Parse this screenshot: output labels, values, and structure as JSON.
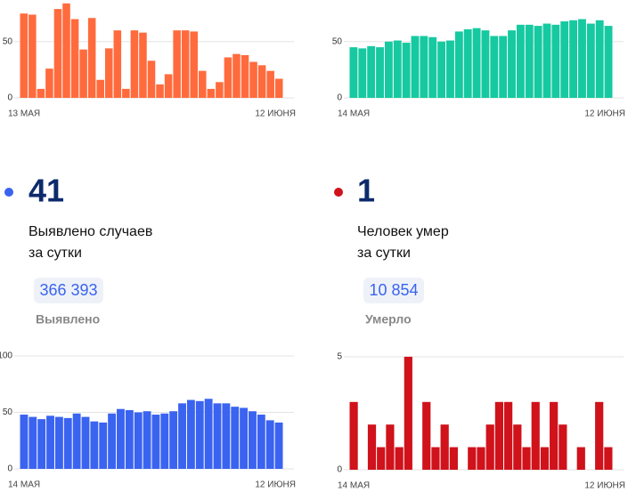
{
  "chart_data": [
    {
      "type": "bar",
      "color": "#ff6b3d",
      "x_labels": [
        "13 МАЯ",
        "12 ИЮНЯ"
      ],
      "ylim": [
        0,
        87
      ],
      "yticks": [
        0,
        50
      ],
      "grid": true,
      "values": [
        75,
        74,
        8,
        26,
        79,
        84,
        70,
        43,
        71,
        16,
        44,
        60,
        8,
        60,
        58,
        33,
        12,
        21,
        60,
        60,
        59,
        24,
        8,
        14,
        36,
        39,
        38,
        32,
        29,
        24,
        17
      ]
    },
    {
      "type": "bar",
      "color": "#16c9a0",
      "x_labels": [
        "14 МАЯ",
        "12 ИЮНЯ"
      ],
      "ylim": [
        0,
        87
      ],
      "yticks": [
        0,
        50
      ],
      "grid": true,
      "values": [
        45,
        44,
        46,
        45,
        50,
        51,
        49,
        55,
        55,
        54,
        50,
        51,
        59,
        61,
        62,
        60,
        55,
        55,
        60,
        65,
        65,
        64,
        66,
        65,
        68,
        69,
        70,
        66,
        69,
        64
      ]
    },
    {
      "type": "bar",
      "color": "#3a63f0",
      "x_labels": [
        "14 МАЯ",
        "12 ИЮНЯ"
      ],
      "ylim": [
        0,
        100
      ],
      "yticks": [
        0,
        50,
        100
      ],
      "grid": true,
      "values": [
        48,
        46,
        44,
        47,
        46,
        45,
        49,
        46,
        42,
        41,
        49,
        53,
        52,
        50,
        51,
        48,
        49,
        51,
        58,
        61,
        60,
        62,
        58,
        58,
        55,
        54,
        51,
        48,
        43,
        41
      ]
    },
    {
      "type": "bar",
      "color": "#d0121b",
      "x_labels": [
        "14 МАЯ",
        "12 ИЮНЯ"
      ],
      "ylim": [
        0,
        5
      ],
      "yticks": [
        0,
        5
      ],
      "grid": true,
      "values": [
        3,
        0,
        2,
        1,
        2,
        1,
        5,
        0,
        3,
        1,
        2,
        1,
        0,
        1,
        1,
        2,
        3,
        3,
        2,
        1,
        3,
        1,
        3,
        2,
        0,
        1,
        0,
        3,
        1
      ]
    }
  ],
  "stats": [
    {
      "number": "41",
      "caption_1": "Выявлено случаев",
      "caption_2": "за сутки",
      "total": "366 393",
      "total_label": "Выявлено"
    },
    {
      "number": "1",
      "caption_1": "Человек умер",
      "caption_2": "за сутки",
      "total": "10 854",
      "total_label": "Умерло"
    }
  ]
}
